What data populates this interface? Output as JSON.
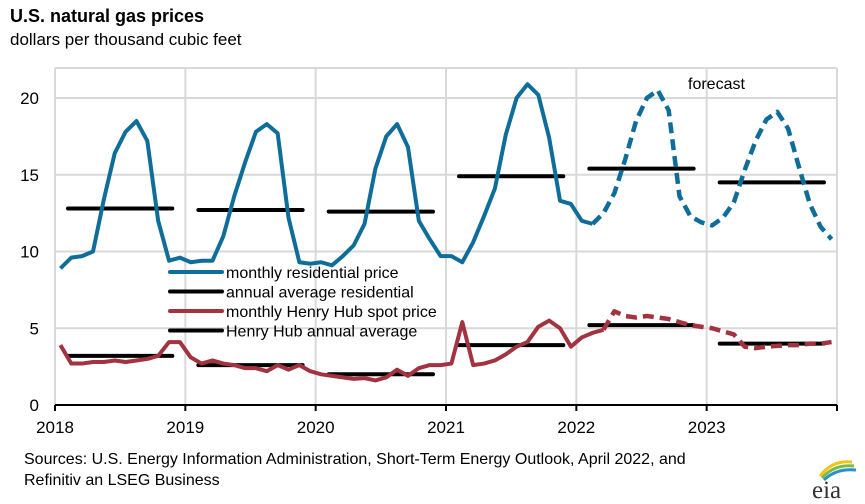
{
  "header": {
    "title": "U.S. natural gas prices",
    "subtitle": "dollars per thousand  cubic feet"
  },
  "footer": {
    "source_line1": "Sources: U.S. Energy Information Administration,  Short-Term Energy Outlook, April 2022, and",
    "source_line2": "Refinitiv an LSEG Business",
    "logo_text": "eia"
  },
  "chart_data": {
    "type": "line",
    "title": "U.S. natural gas prices",
    "ylabel": "dollars per thousand cubic feet",
    "xlabel": "",
    "ylim": [
      0,
      22
    ],
    "yticks": [
      0,
      5,
      10,
      15,
      20
    ],
    "xticks": [
      "2018",
      "2019",
      "2020",
      "2021",
      "2022",
      "2023"
    ],
    "x_start": "2018-01",
    "x_end": "2023-12",
    "grid": true,
    "annotation": "forecast",
    "forecast_start_month_index": 2,
    "legend_position": "center-left",
    "colors": {
      "residential": "#0f6e99",
      "henry_hub": "#a33340",
      "annual": "#000000",
      "grid": "#d9d9d9"
    },
    "series": [
      {
        "name": "monthly residential price",
        "key": "residential",
        "style": "solid-then-dashed",
        "forecast_from_index": 49,
        "values": [
          8.9,
          9.6,
          9.7,
          10.0,
          13.4,
          16.4,
          17.8,
          18.5,
          17.2,
          12.0,
          9.4,
          9.6,
          9.3,
          9.4,
          9.4,
          11.0,
          13.6,
          15.8,
          17.8,
          18.3,
          17.7,
          12.2,
          9.3,
          9.2,
          9.3,
          9.1,
          9.7,
          10.4,
          11.8,
          15.4,
          17.5,
          18.3,
          16.8,
          12.0,
          10.8,
          9.7,
          9.7,
          9.3,
          10.6,
          12.3,
          14.1,
          17.6,
          20.0,
          20.9,
          20.2,
          17.4,
          13.3,
          13.1,
          12.0,
          11.8,
          12.5,
          13.8,
          16.0,
          18.5,
          20.0,
          20.5,
          19.2,
          13.6,
          12.3,
          11.9,
          11.7,
          12.2,
          13.2,
          15.3,
          17.2,
          18.6,
          19.1,
          18.0,
          15.5,
          13.1,
          11.6,
          10.8
        ]
      },
      {
        "name": "annual average residential",
        "key": "annual",
        "years": [
          "2018",
          "2019",
          "2020",
          "2021",
          "2022",
          "2023"
        ],
        "values": [
          12.8,
          12.7,
          12.6,
          14.9,
          15.4,
          14.5
        ]
      },
      {
        "name": "monthly Henry Hub spot price",
        "key": "henry_hub",
        "style": "solid-then-dashed",
        "forecast_from_index": 50,
        "values": [
          3.9,
          2.7,
          2.7,
          2.8,
          2.8,
          2.9,
          2.8,
          2.9,
          3.0,
          3.2,
          4.1,
          4.1,
          3.1,
          2.7,
          2.9,
          2.7,
          2.6,
          2.4,
          2.4,
          2.2,
          2.6,
          2.3,
          2.6,
          2.2,
          2.0,
          1.9,
          1.8,
          1.7,
          1.75,
          1.6,
          1.8,
          2.3,
          1.9,
          2.4,
          2.6,
          2.6,
          2.7,
          5.4,
          2.6,
          2.7,
          2.9,
          3.3,
          3.8,
          4.1,
          5.1,
          5.5,
          5.0,
          3.8,
          4.4,
          4.7,
          4.9,
          6.1,
          5.8,
          5.7,
          5.8,
          5.7,
          5.6,
          5.4,
          5.2,
          5.1,
          5.0,
          4.8,
          4.6,
          3.8,
          3.7,
          3.8,
          3.85,
          3.9,
          3.9,
          4.0,
          4.0,
          4.1
        ]
      },
      {
        "name": "Henry Hub annual average",
        "key": "annual",
        "years": [
          "2018",
          "2019",
          "2020",
          "2021",
          "2022",
          "2023"
        ],
        "values": [
          3.2,
          2.6,
          2.0,
          3.9,
          5.2,
          4.0
        ]
      }
    ],
    "legend": [
      {
        "label": "monthly residential price",
        "color": "#0f6e99"
      },
      {
        "label": "annual average residential",
        "color": "#000000"
      },
      {
        "label": "monthly Henry Hub spot price",
        "color": "#a33340"
      },
      {
        "label": "Henry Hub annual average",
        "color": "#000000"
      }
    ]
  }
}
